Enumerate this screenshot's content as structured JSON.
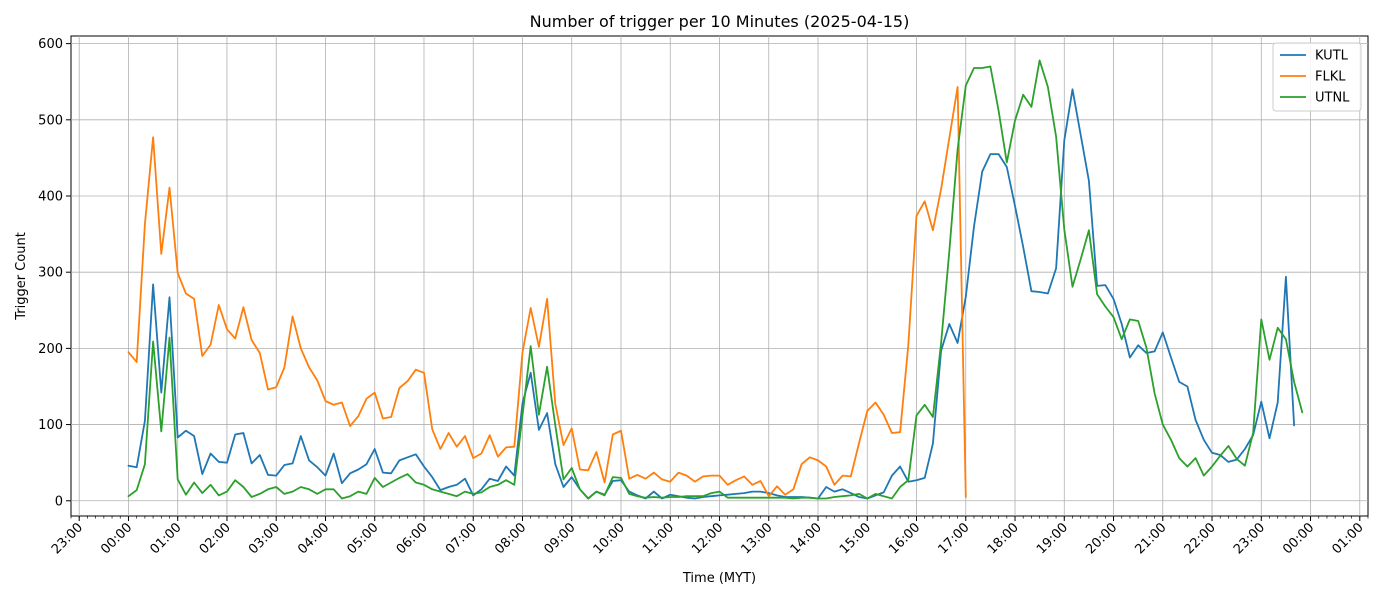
{
  "chart_data": {
    "type": "line",
    "title": "Number of trigger per 10 Minutes (2025-04-15)",
    "xlabel": "Time (MYT)",
    "ylabel": "Trigger Count",
    "xlim": [
      "2025-04-14 22:50",
      "2025-04-16 01:10"
    ],
    "ylim": [
      -20,
      610
    ],
    "x_ticks": [
      "2025-04-14 23:00",
      "2025-04-15 00:00",
      "2025-04-15 01:00",
      "2025-04-15 02:00",
      "2025-04-15 03:00",
      "2025-04-15 04:00",
      "2025-04-15 05:00",
      "2025-04-15 06:00",
      "2025-04-15 07:00",
      "2025-04-15 08:00",
      "2025-04-15 09:00",
      "2025-04-15 10:00",
      "2025-04-15 11:00",
      "2025-04-15 12:00",
      "2025-04-15 13:00",
      "2025-04-15 14:00",
      "2025-04-15 15:00",
      "2025-04-15 16:00",
      "2025-04-15 17:00",
      "2025-04-15 18:00",
      "2025-04-15 19:00",
      "2025-04-15 20:00",
      "2025-04-15 21:00",
      "2025-04-15 22:00",
      "2025-04-15 23:00",
      "2025-04-16 00:00",
      "2025-04-16 01:00"
    ],
    "x_tick_labels": [
      "23:00",
      "00:00",
      "01:00",
      "02:00",
      "03:00",
      "04:00",
      "05:00",
      "06:00",
      "07:00",
      "08:00",
      "09:00",
      "10:00",
      "11:00",
      "12:00",
      "13:00",
      "14:00",
      "15:00",
      "16:00",
      "17:00",
      "18:00",
      "19:00",
      "20:00",
      "21:00",
      "22:00",
      "23:00",
      "00:00",
      "01:00"
    ],
    "y_ticks": [
      0,
      100,
      200,
      300,
      400,
      500,
      600
    ],
    "grid": true,
    "legend_position": "top-right",
    "series": [
      {
        "name": "KUTL",
        "color": "#1f77b4",
        "start": "2025-04-15 00:00",
        "interval_minutes": 10,
        "values": [
          46,
          44,
          105,
          284,
          142,
          267,
          83,
          92,
          85,
          35,
          62,
          51,
          50,
          87,
          89,
          49,
          60,
          34,
          33,
          47,
          49,
          85,
          53,
          44,
          33,
          62,
          23,
          36,
          41,
          48,
          68,
          37,
          36,
          53,
          57,
          61,
          45,
          31,
          14,
          18,
          21,
          29,
          7,
          15,
          29,
          26,
          45,
          33,
          128,
          168,
          93,
          115,
          48,
          18,
          31,
          15,
          3,
          12,
          8,
          26,
          27,
          12,
          7,
          3,
          12,
          3,
          8,
          6,
          4,
          3,
          5,
          6,
          7,
          8,
          9,
          10,
          12,
          12,
          10,
          7,
          5,
          5,
          5,
          4,
          3,
          18,
          12,
          15,
          10,
          5,
          3,
          7,
          11,
          33,
          45,
          25,
          27,
          30,
          75,
          197,
          232,
          207,
          268,
          360,
          432,
          455,
          455,
          438,
          387,
          333,
          275,
          274,
          272,
          305,
          473,
          540,
          480,
          420,
          282,
          283,
          265,
          232,
          188,
          204,
          194,
          196,
          221,
          188,
          156,
          150,
          106,
          80,
          63,
          60,
          51,
          54,
          68,
          86,
          130,
          82,
          129,
          294,
          99
        ]
      },
      {
        "name": "FLKL",
        "color": "#ff7f0e",
        "start": "2025-04-15 00:00",
        "interval_minutes": 10,
        "values": [
          195,
          182,
          363,
          477,
          324,
          411,
          299,
          272,
          265,
          190,
          205,
          257,
          225,
          213,
          254,
          211,
          194,
          146,
          149,
          175,
          242,
          200,
          175,
          158,
          131,
          126,
          129,
          98,
          111,
          134,
          142,
          108,
          110,
          148,
          157,
          172,
          168,
          94,
          68,
          89,
          71,
          85,
          56,
          62,
          86,
          58,
          70,
          71,
          195,
          253,
          202,
          265,
          127,
          73,
          95,
          41,
          40,
          64,
          24,
          87,
          92,
          29,
          34,
          29,
          37,
          28,
          25,
          37,
          33,
          25,
          32,
          33,
          33,
          21,
          27,
          32,
          21,
          26,
          6,
          19,
          8,
          15,
          48,
          57,
          53,
          45,
          21,
          33,
          32,
          76,
          118,
          129,
          113,
          89,
          90,
          204,
          374,
          393,
          355,
          409,
          476,
          543,
          5
        ]
      },
      {
        "name": "UTNL",
        "color": "#2ca02c",
        "start": "2025-04-15 00:00",
        "interval_minutes": 10,
        "values": [
          6,
          14,
          48,
          209,
          91,
          214,
          28,
          8,
          24,
          10,
          21,
          7,
          12,
          27,
          18,
          5,
          9,
          15,
          18,
          9,
          12,
          18,
          15,
          9,
          15,
          15,
          3,
          6,
          12,
          9,
          30,
          18,
          24,
          30,
          35,
          24,
          21,
          15,
          12,
          9,
          6,
          12,
          9,
          11,
          18,
          21,
          27,
          21,
          112,
          203,
          113,
          176,
          99,
          28,
          43,
          15,
          3,
          12,
          7,
          31,
          30,
          9,
          6,
          4,
          5,
          4,
          5,
          5,
          6,
          6,
          6,
          10,
          12,
          4,
          4,
          4,
          4,
          4,
          4,
          4,
          4,
          3,
          4,
          4,
          3,
          3,
          5,
          6,
          7,
          9,
          3,
          9,
          6,
          3,
          18,
          27,
          112,
          126,
          110,
          207,
          327,
          461,
          545,
          568,
          568,
          570,
          512,
          444,
          499,
          533,
          517,
          578,
          543,
          478,
          356,
          281,
          317,
          355,
          271,
          255,
          241,
          212,
          238,
          236,
          201,
          141,
          100,
          80,
          56,
          45,
          56,
          33,
          45,
          59,
          72,
          55,
          46,
          89,
          238,
          185,
          227,
          212,
          156,
          116
        ]
      }
    ]
  }
}
